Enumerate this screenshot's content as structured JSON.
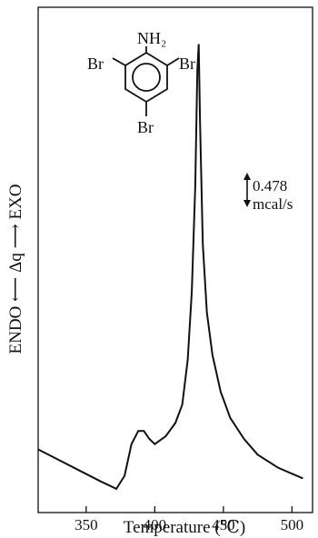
{
  "chart_data": {
    "type": "line",
    "xlabel": "Temperature (℃)",
    "ylabel": "ENDO ⟵ Δq ⟶ EXO",
    "x_ticks": [
      350,
      400,
      450,
      500
    ],
    "xlim": [
      315,
      515
    ],
    "ylim": [
      -1.2,
      8.4
    ],
    "grid": false,
    "scale_bar": {
      "value": "0.478",
      "unit": "mcal/s"
    },
    "structure": {
      "top": "NH₂",
      "left": "Br",
      "right": "Br",
      "bottom": "Br"
    },
    "series": [
      {
        "points": [
          [
            315,
            0.0
          ],
          [
            330,
            -0.2
          ],
          [
            345,
            -0.4
          ],
          [
            360,
            -0.6
          ],
          [
            372,
            -0.75
          ],
          [
            378,
            -0.5
          ],
          [
            383,
            0.1
          ],
          [
            388,
            0.35
          ],
          [
            392,
            0.35
          ],
          [
            396,
            0.2
          ],
          [
            400,
            0.1
          ],
          [
            408,
            0.25
          ],
          [
            415,
            0.5
          ],
          [
            420,
            0.85
          ],
          [
            424,
            1.7
          ],
          [
            427,
            3.0
          ],
          [
            429.5,
            5.0
          ],
          [
            431,
            7.2
          ],
          [
            432,
            7.7
          ],
          [
            433,
            6.2
          ],
          [
            435,
            3.9
          ],
          [
            438,
            2.6
          ],
          [
            442,
            1.8
          ],
          [
            448,
            1.1
          ],
          [
            455,
            0.6
          ],
          [
            465,
            0.2
          ],
          [
            475,
            -0.1
          ],
          [
            490,
            -0.35
          ],
          [
            508,
            -0.55
          ]
        ]
      }
    ]
  }
}
